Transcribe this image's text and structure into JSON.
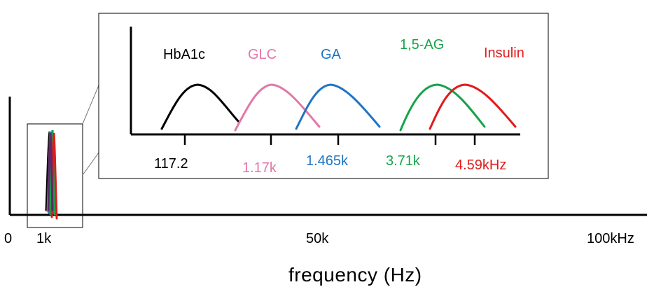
{
  "main_axis": {
    "tick_labels": [
      "0",
      "1k",
      "50k",
      "100kHz"
    ],
    "xlabel": "frequency (Hz)"
  },
  "inset": {
    "labels": [
      {
        "name": "HbA1c",
        "color": "#000000"
      },
      {
        "name": "GLC",
        "color": "#e377a8"
      },
      {
        "name": "GA",
        "color": "#1f74c4"
      },
      {
        "name": "1,5-AG",
        "color": "#17a34a"
      },
      {
        "name": "Insulin",
        "color": "#e01b1b"
      }
    ],
    "freq_labels": [
      {
        "text": "117.2",
        "color": "#000000"
      },
      {
        "text": "1.17k",
        "color": "#e377a8"
      },
      {
        "text": "1.465k",
        "color": "#1f74c4"
      },
      {
        "text": "3.71k",
        "color": "#17a34a"
      },
      {
        "text": "4.59kHz",
        "color": "#e01b1b"
      }
    ]
  }
}
